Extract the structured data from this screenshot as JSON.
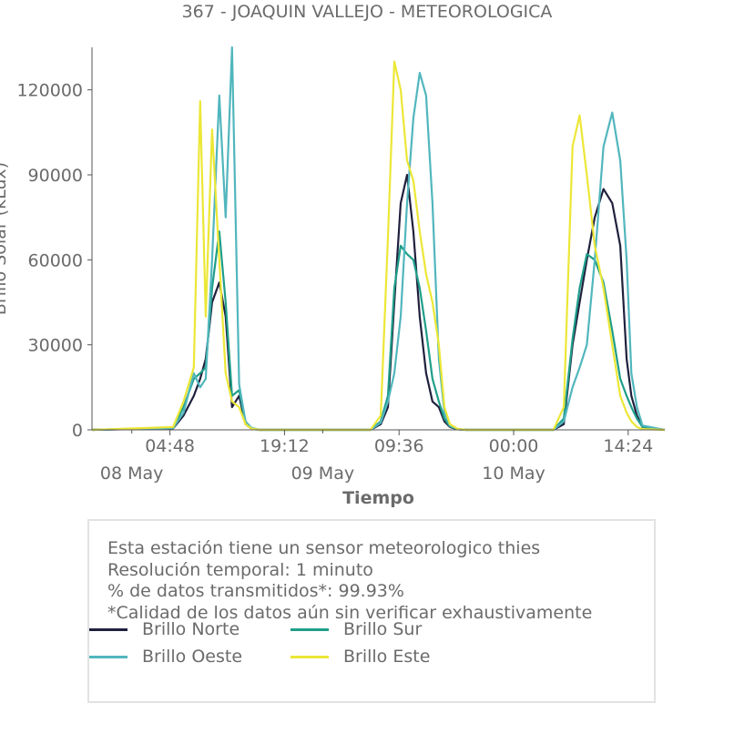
{
  "chart_data": {
    "type": "line",
    "title": "367 - JOAQUIN VALLEJO - METEOROLOGICA",
    "xlabel": "Tiempo",
    "ylabel": "Brillo Solar (kLux)",
    "ylim": [
      0,
      135000
    ],
    "y_ticks": [
      0,
      30000,
      60000,
      90000,
      120000
    ],
    "x_ticks": [
      {
        "label": "04:48",
        "date": "08 May"
      },
      {
        "label": "19:12",
        "date": ""
      },
      {
        "label": "09:36",
        "date": "09 May"
      },
      {
        "label": "00:00",
        "date": ""
      },
      {
        "label": "14:24",
        "date": "10 May"
      }
    ],
    "x_day_labels": [
      "08 May",
      "09 May",
      "10 May"
    ],
    "x_range_hours": [
      -5,
      67
    ],
    "grid": false,
    "series": [
      {
        "name": "Brillo Norte",
        "color": "#20203e",
        "x": [
          -5,
          5.2,
          6.5,
          7.8,
          8.6,
          9.3,
          10.1,
          11.0,
          11.8,
          12.6,
          13.5,
          14.3,
          15.0,
          16.0,
          17.0,
          30.0,
          31.3,
          32.2,
          33.0,
          33.8,
          34.6,
          35.4,
          36.2,
          37.0,
          37.8,
          38.6,
          39.3,
          40.0,
          41.0,
          42.0,
          53.0,
          54.3,
          55.4,
          56.3,
          57.2,
          58.2,
          59.3,
          60.4,
          61.4,
          62.2,
          62.8,
          63.5,
          64.2,
          67
        ],
        "y": [
          0,
          500,
          5000,
          12000,
          18000,
          25000,
          45000,
          52000,
          40000,
          8000,
          12000,
          2000,
          500,
          0,
          0,
          0,
          2000,
          8000,
          45000,
          80000,
          90000,
          70000,
          40000,
          20000,
          10000,
          8000,
          3000,
          1000,
          200,
          0,
          0,
          2000,
          30000,
          45000,
          60000,
          75000,
          85000,
          80000,
          65000,
          25000,
          12000,
          5000,
          1000,
          0
        ]
      },
      {
        "name": "Brillo Sur",
        "color": "#1f9e89",
        "x": [
          -5,
          5.2,
          6.5,
          7.8,
          8.6,
          9.3,
          10.1,
          11.0,
          11.8,
          12.6,
          13.5,
          14.3,
          15.0,
          16.0,
          17.0,
          30.0,
          31.3,
          32.2,
          33.0,
          33.8,
          34.6,
          35.4,
          36.2,
          37.0,
          37.8,
          38.6,
          39.3,
          40.0,
          41.0,
          42.0,
          53.0,
          54.3,
          55.4,
          56.3,
          57.2,
          58.2,
          59.3,
          60.4,
          61.4,
          62.2,
          62.8,
          63.5,
          64.2,
          67
        ],
        "y": [
          0,
          800,
          8000,
          18000,
          20000,
          22000,
          50000,
          70000,
          45000,
          12000,
          14000,
          2500,
          700,
          0,
          0,
          0,
          3000,
          12000,
          50000,
          65000,
          62000,
          60000,
          50000,
          35000,
          18000,
          10000,
          4000,
          1200,
          300,
          0,
          0,
          4000,
          32000,
          50000,
          62000,
          60000,
          52000,
          35000,
          18000,
          12000,
          8000,
          4000,
          1000,
          0
        ]
      },
      {
        "name": "Brillo Oeste",
        "color": "#51b6bd",
        "x": [
          -5,
          5.2,
          6.5,
          7.8,
          8.6,
          9.3,
          10.1,
          11.0,
          11.8,
          12.6,
          13.5,
          14.3,
          15.0,
          16.0,
          17.0,
          30.0,
          31.3,
          32.2,
          33.0,
          33.8,
          34.6,
          35.4,
          36.2,
          37.0,
          37.8,
          38.6,
          39.3,
          40.0,
          41.0,
          42.0,
          53.0,
          54.3,
          55.4,
          56.3,
          57.2,
          58.2,
          59.3,
          60.4,
          61.4,
          62.2,
          62.8,
          63.5,
          64.2,
          67
        ],
        "y": [
          0,
          600,
          6000,
          20000,
          15000,
          18000,
          60000,
          118000,
          75000,
          135000,
          16000,
          3000,
          800,
          0,
          0,
          0,
          2500,
          10000,
          20000,
          40000,
          80000,
          110000,
          126000,
          118000,
          80000,
          25000,
          6000,
          1500,
          300,
          0,
          0,
          3000,
          15000,
          22000,
          30000,
          60000,
          100000,
          112000,
          95000,
          60000,
          20000,
          8000,
          1500,
          0
        ]
      },
      {
        "name": "Brillo Este",
        "color": "#ece736",
        "x": [
          -5,
          5.2,
          6.5,
          7.8,
          8.6,
          9.3,
          10.1,
          11.0,
          11.8,
          12.6,
          13.5,
          14.3,
          15.0,
          16.0,
          17.0,
          30.0,
          31.3,
          32.2,
          33.0,
          33.8,
          34.6,
          35.4,
          36.2,
          37.0,
          37.8,
          38.6,
          39.3,
          40.0,
          41.0,
          42.0,
          53.0,
          54.3,
          55.4,
          56.3,
          57.2,
          58.2,
          59.3,
          60.4,
          61.4,
          62.2,
          62.8,
          63.5,
          64.2,
          67
        ],
        "y": [
          0,
          1000,
          10000,
          22000,
          116000,
          40000,
          106000,
          60000,
          20000,
          10000,
          8000,
          2000,
          500,
          0,
          0,
          0,
          5000,
          68000,
          130000,
          120000,
          95000,
          88000,
          70000,
          55000,
          45000,
          30000,
          8000,
          2000,
          300,
          0,
          0,
          8000,
          100000,
          111000,
          90000,
          65000,
          50000,
          30000,
          12000,
          6000,
          3000,
          1000,
          300,
          0
        ]
      }
    ]
  },
  "info": {
    "line1": "Esta estación tiene un sensor meteorologico thies",
    "line2": "Resolución temporal: 1 minuto",
    "line3": "% de datos transmitidos*: 99.93%",
    "line4": "*Calidad de los datos aún sin verificar exhaustivamente"
  },
  "legend": [
    {
      "label": "Brillo Norte",
      "color": "#20203e"
    },
    {
      "label": "Brillo Sur",
      "color": "#1f9e89"
    },
    {
      "label": "Brillo Oeste",
      "color": "#51b6bd"
    },
    {
      "label": "Brillo Este",
      "color": "#ece736"
    }
  ]
}
